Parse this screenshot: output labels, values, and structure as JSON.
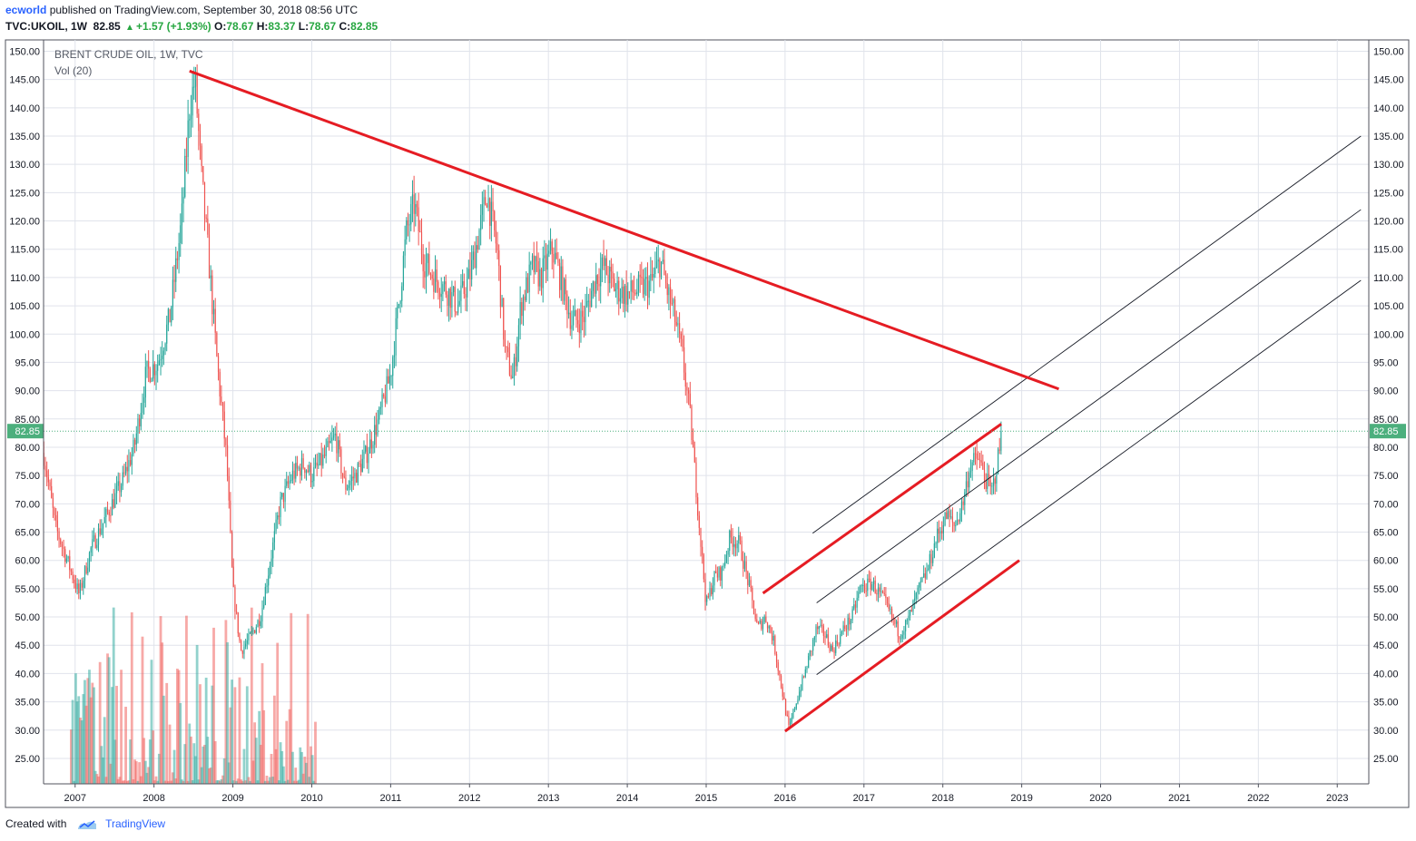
{
  "header": {
    "author": "ecworld",
    "published_text": " published on TradingView.com, September 30, 2018 08:56 UTC",
    "symbol": "TVC:UKOIL, 1W",
    "price": "82.85",
    "change": "+1.57 (+1.93%)",
    "open_label": "O:",
    "open": "78.67",
    "high_label": "H:",
    "high": "83.37",
    "low_label": "L:",
    "low": "78.67",
    "close_label": "C:",
    "close": "82.85"
  },
  "legend": {
    "title": "BRENT CRUDE OIL, 1W, TVC",
    "vol": "Vol (20)"
  },
  "footer": {
    "created_with": "Created with",
    "brand": "TradingView"
  },
  "colors": {
    "up": "#26a69a",
    "down": "#ef5350",
    "trend": "#e51c23",
    "channel": "#131722",
    "grid": "#e0e3eb",
    "last_price_bg": "#4caf7d"
  },
  "chart_data": {
    "type": "candlestick",
    "title": "BRENT CRUDE OIL, 1W, TVC",
    "x_range": [
      2006.6,
      2023.4
    ],
    "ylim": [
      20.5,
      152
    ],
    "y_ticks": [
      "25.00",
      "30.00",
      "35.00",
      "40.00",
      "45.00",
      "50.00",
      "55.00",
      "60.00",
      "65.00",
      "70.00",
      "75.00",
      "80.00",
      "85.00",
      "90.00",
      "95.00",
      "100.00",
      "105.00",
      "110.00",
      "115.00",
      "120.00",
      "125.00",
      "130.00",
      "135.00",
      "140.00",
      "145.00",
      "150.00"
    ],
    "x_ticks": [
      "2007",
      "2008",
      "2009",
      "2010",
      "2011",
      "2012",
      "2013",
      "2014",
      "2015",
      "2016",
      "2017",
      "2018",
      "2019",
      "2020",
      "2021",
      "2022",
      "2023"
    ],
    "last_price": "82.85",
    "price_path": [
      [
        2006.6,
        79
      ],
      [
        2006.75,
        66
      ],
      [
        2006.9,
        60
      ],
      [
        2007.05,
        54
      ],
      [
        2007.2,
        62
      ],
      [
        2007.4,
        68
      ],
      [
        2007.6,
        74
      ],
      [
        2007.75,
        80
      ],
      [
        2007.9,
        93
      ],
      [
        2008.05,
        95
      ],
      [
        2008.2,
        103
      ],
      [
        2008.35,
        120
      ],
      [
        2008.45,
        140
      ],
      [
        2008.52,
        145
      ],
      [
        2008.6,
        128
      ],
      [
        2008.7,
        112
      ],
      [
        2008.8,
        95
      ],
      [
        2008.92,
        78
      ],
      [
        2009.0,
        55
      ],
      [
        2009.1,
        44
      ],
      [
        2009.2,
        46
      ],
      [
        2009.35,
        50
      ],
      [
        2009.5,
        62
      ],
      [
        2009.6,
        70
      ],
      [
        2009.75,
        75
      ],
      [
        2009.9,
        77
      ],
      [
        2010.0,
        75
      ],
      [
        2010.15,
        78
      ],
      [
        2010.3,
        82
      ],
      [
        2010.42,
        73
      ],
      [
        2010.55,
        75
      ],
      [
        2010.7,
        79
      ],
      [
        2010.85,
        85
      ],
      [
        2011.0,
        93
      ],
      [
        2011.1,
        105
      ],
      [
        2011.2,
        118
      ],
      [
        2011.3,
        123
      ],
      [
        2011.42,
        113
      ],
      [
        2011.55,
        110
      ],
      [
        2011.7,
        108
      ],
      [
        2011.85,
        105
      ],
      [
        2012.0,
        110
      ],
      [
        2012.15,
        120
      ],
      [
        2012.22,
        125
      ],
      [
        2012.35,
        115
      ],
      [
        2012.45,
        97
      ],
      [
        2012.55,
        92
      ],
      [
        2012.65,
        105
      ],
      [
        2012.8,
        112
      ],
      [
        2012.9,
        110
      ],
      [
        2013.05,
        115
      ],
      [
        2013.15,
        110
      ],
      [
        2013.3,
        102
      ],
      [
        2013.45,
        103
      ],
      [
        2013.6,
        110
      ],
      [
        2013.7,
        112
      ],
      [
        2013.85,
        108
      ],
      [
        2014.0,
        107
      ],
      [
        2014.15,
        108
      ],
      [
        2014.3,
        109
      ],
      [
        2014.42,
        113
      ],
      [
        2014.5,
        108
      ],
      [
        2014.6,
        103
      ],
      [
        2014.7,
        96
      ],
      [
        2014.8,
        85
      ],
      [
        2014.92,
        65
      ],
      [
        2015.0,
        52
      ],
      [
        2015.1,
        57
      ],
      [
        2015.2,
        58
      ],
      [
        2015.3,
        64
      ],
      [
        2015.42,
        63
      ],
      [
        2015.55,
        55
      ],
      [
        2015.65,
        48
      ],
      [
        2015.75,
        50
      ],
      [
        2015.85,
        46
      ],
      [
        2015.95,
        38
      ],
      [
        2016.05,
        30
      ],
      [
        2016.12,
        34
      ],
      [
        2016.25,
        40
      ],
      [
        2016.4,
        48
      ],
      [
        2016.5,
        47
      ],
      [
        2016.6,
        44
      ],
      [
        2016.75,
        48
      ],
      [
        2016.85,
        50
      ],
      [
        2016.95,
        55
      ],
      [
        2017.1,
        56
      ],
      [
        2017.25,
        53
      ],
      [
        2017.35,
        50
      ],
      [
        2017.45,
        47
      ],
      [
        2017.55,
        49
      ],
      [
        2017.7,
        55
      ],
      [
        2017.8,
        58
      ],
      [
        2017.92,
        64
      ],
      [
        2018.05,
        68
      ],
      [
        2018.15,
        66
      ],
      [
        2018.25,
        70
      ],
      [
        2018.35,
        77
      ],
      [
        2018.45,
        78
      ],
      [
        2018.55,
        74
      ],
      [
        2018.62,
        72
      ],
      [
        2018.7,
        78
      ],
      [
        2018.75,
        82.85
      ]
    ],
    "volume": {
      "x_range": [
        2006.95,
        2010.05
      ],
      "max_level": 53
    },
    "trend_lines": [
      {
        "from": [
          2008.45,
          146.5
        ],
        "to": [
          2019.47,
          90.3
        ]
      },
      {
        "from": [
          2015.72,
          54.2
        ],
        "to": [
          2018.74,
          84.1
        ]
      },
      {
        "from": [
          2016.0,
          29.8
        ],
        "to": [
          2018.97,
          60.0
        ]
      }
    ],
    "channel_lines": [
      {
        "from": [
          2016.35,
          64.8
        ],
        "to": [
          2023.3,
          135.0
        ]
      },
      {
        "from": [
          2016.4,
          52.5
        ],
        "to": [
          2023.3,
          122.0
        ]
      },
      {
        "from": [
          2016.4,
          39.8
        ],
        "to": [
          2023.3,
          109.5
        ]
      }
    ]
  }
}
